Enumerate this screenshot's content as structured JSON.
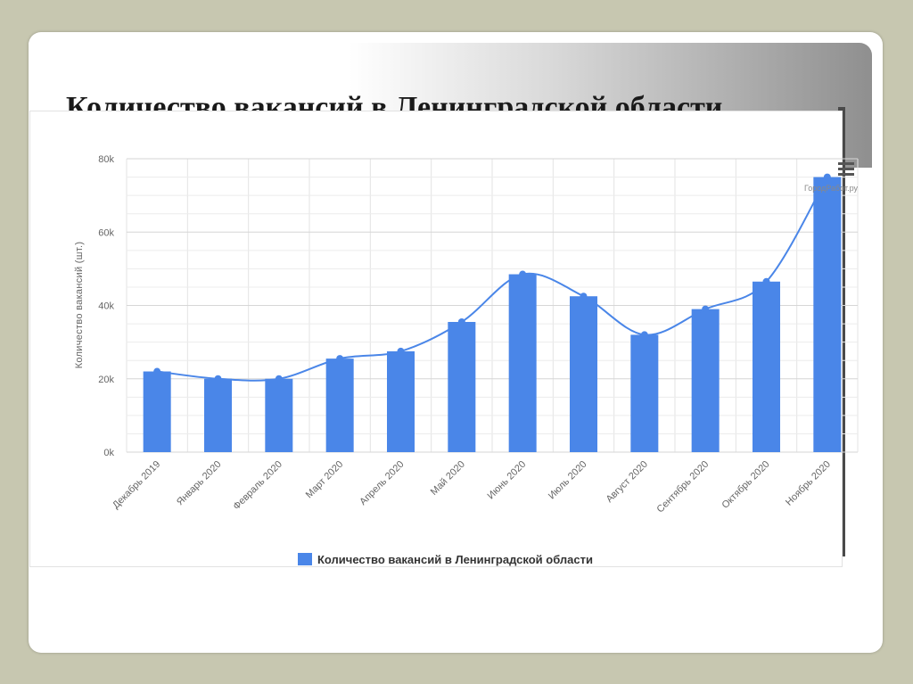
{
  "slide": {
    "title": "Количество вакансий в Ленинградской области"
  },
  "chart_data": {
    "type": "bar",
    "title": "",
    "xlabel": "",
    "ylabel": "Количество вакансий (шт.)",
    "ylim": [
      0,
      80000
    ],
    "yticks": [
      0,
      20000,
      40000,
      60000,
      80000
    ],
    "ytick_labels": [
      "0k",
      "20k",
      "40k",
      "60k",
      "80k"
    ],
    "grid": true,
    "legend_position": "bottom",
    "categories": [
      "Декабрь 2019",
      "Январь 2020",
      "Февраль 2020",
      "Март 2020",
      "Апрель 2020",
      "Май 2020",
      "Июнь 2020",
      "Июль 2020",
      "Август 2020",
      "Сентябрь 2020",
      "Октябрь 2020",
      "Ноябрь 2020"
    ],
    "series": [
      {
        "name": "Количество вакансий в Ленинградской области",
        "type": "bar",
        "color": "#4a86e8",
        "values": [
          22000,
          20000,
          20000,
          25500,
          27500,
          35500,
          48500,
          42500,
          32000,
          39000,
          46500,
          75000
        ]
      },
      {
        "type": "spline",
        "color": "#4a86e8",
        "values": [
          22000,
          20000,
          20000,
          25500,
          27500,
          35500,
          48500,
          42500,
          32000,
          39000,
          46500,
          75000
        ]
      }
    ],
    "credit": "ГородРабот.ру",
    "menu_icon": "hamburger-menu-icon"
  }
}
